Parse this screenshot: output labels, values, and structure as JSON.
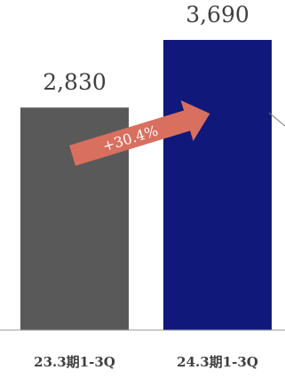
{
  "chart_data": {
    "type": "bar",
    "categories": [
      "23.3期1-3Q",
      "24.3期1-3Q"
    ],
    "values": [
      2830,
      3690
    ],
    "value_labels": [
      "2,830",
      "3,690"
    ],
    "colors": [
      "#595959",
      "#10197a"
    ],
    "annotation": {
      "text": "+30.4%",
      "color": "#d96f5f"
    },
    "ylim": [
      0,
      3690
    ],
    "grid": false,
    "legend": "none"
  }
}
